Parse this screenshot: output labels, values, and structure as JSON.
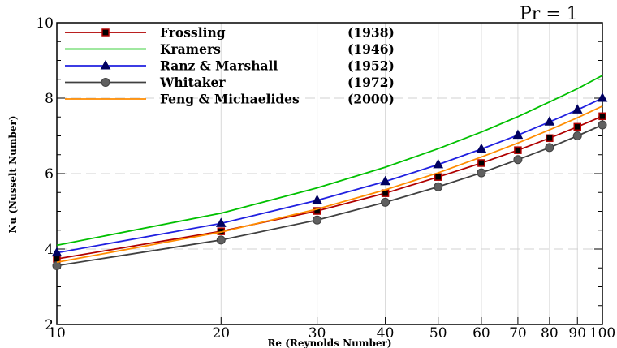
{
  "chart_data": {
    "type": "line",
    "annotation": "Pr = 1",
    "xlabel": "Re (Reynolds Number)",
    "ylabel": "Nu (Nusselt Number)",
    "xscale": "log",
    "xlim": [
      10,
      100
    ],
    "ylim": [
      2,
      10
    ],
    "x_ticks": [
      10,
      20,
      30,
      40,
      50,
      60,
      70,
      80,
      90,
      100
    ],
    "x_tick_labels": [
      "10",
      "20",
      "30",
      "40",
      "50",
      "60",
      "70",
      "80",
      "90",
      "100"
    ],
    "y_ticks": [
      2,
      4,
      6,
      8,
      10
    ],
    "y_tick_labels": [
      "2",
      "4",
      "6",
      "8",
      "10"
    ],
    "grid": true,
    "legend_position": "top-left",
    "x": [
      10,
      20,
      30,
      40,
      50,
      60,
      70,
      80,
      90,
      100
    ],
    "series": [
      {
        "name": "Frossling",
        "year": "(1938)",
        "color": "#b00000",
        "marker": "square",
        "marker_fill": "#000000",
        "values": [
          3.74,
          4.47,
          5.01,
          5.48,
          5.91,
          6.28,
          6.62,
          6.94,
          7.24,
          7.52
        ]
      },
      {
        "name": "Kramers",
        "year": "(1946)",
        "color": "#00c000",
        "marker": "none",
        "marker_fill": "",
        "values": [
          4.1,
          4.95,
          5.62,
          6.17,
          6.66,
          7.1,
          7.51,
          7.9,
          8.25,
          8.6
        ]
      },
      {
        "name": "Ranz & Marshall",
        "year": "(1952)",
        "color": "#2020e0",
        "marker": "triangle",
        "marker_fill": "#000060",
        "values": [
          3.9,
          4.68,
          5.29,
          5.79,
          6.24,
          6.65,
          7.02,
          7.37,
          7.69,
          8.0
        ]
      },
      {
        "name": "Whitaker",
        "year": "(1972)",
        "color": "#404040",
        "marker": "circle",
        "marker_fill": "#606060",
        "values": [
          3.56,
          4.24,
          4.77,
          5.24,
          5.65,
          6.02,
          6.37,
          6.69,
          7.0,
          7.29
        ]
      },
      {
        "name": "Feng & Michaelides",
        "year": "(2000)",
        "color": "#ff8c00",
        "marker": "none",
        "marker_fill": "",
        "values": [
          3.65,
          4.45,
          5.06,
          5.57,
          6.02,
          6.44,
          6.81,
          7.16,
          7.48,
          7.79
        ]
      }
    ]
  }
}
